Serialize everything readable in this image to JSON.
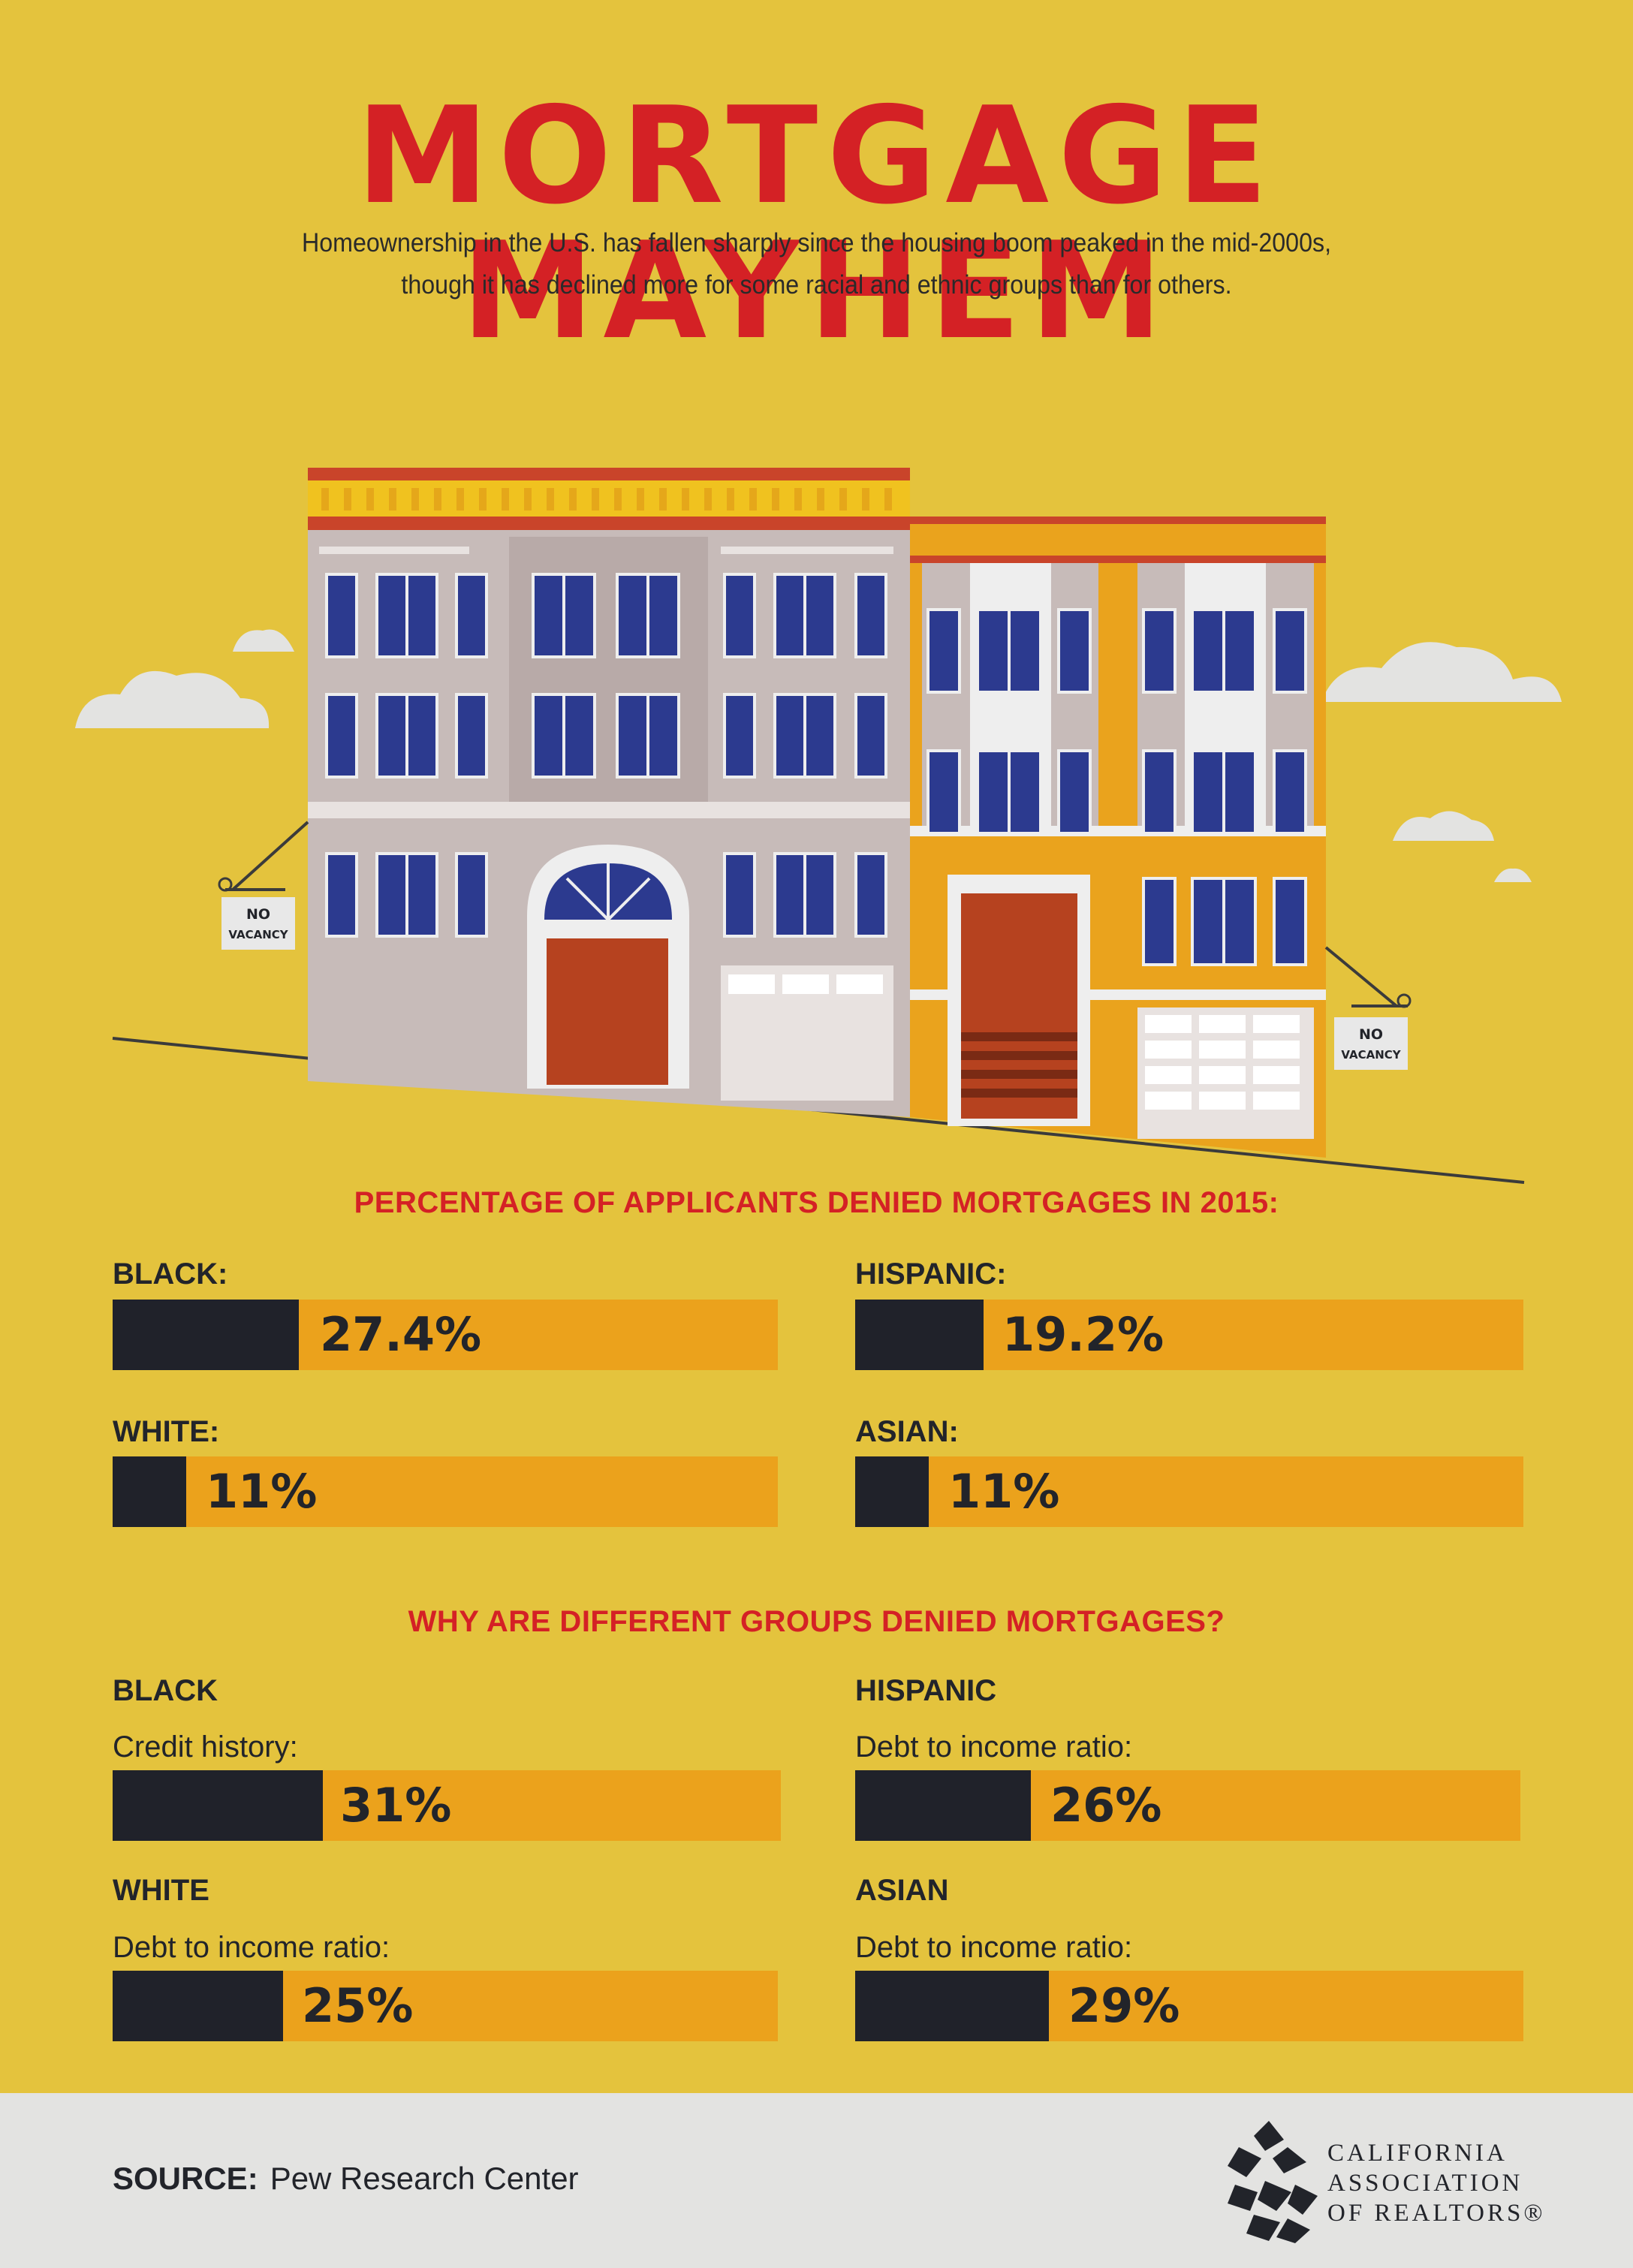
{
  "header": {
    "title": "MORTGAGE MAYHEM",
    "subtitle_line1": "Homeownership in the U.S. has fallen sharply since the housing boom peaked in the mid-2000s,",
    "subtitle_line2": "though it has declined more for some racial and ethnic groups than for others."
  },
  "illustration": {
    "sign_left": [
      "NO",
      "VACANCY"
    ],
    "sign_right": [
      "NO",
      "VACANCY"
    ]
  },
  "denial_section": {
    "title": "PERCENTAGE OF APPLICANTS DENIED MORTGAGES IN 2015:",
    "items": [
      {
        "label": "BLACK:",
        "value_text": "27.4%",
        "value": 27.4
      },
      {
        "label": "HISPANIC:",
        "value_text": "19.2%",
        "value": 19.2
      },
      {
        "label": "WHITE:",
        "value_text": "11%",
        "value": 11
      },
      {
        "label": "ASIAN:",
        "value_text": "11%",
        "value": 11
      }
    ]
  },
  "reasons_section": {
    "title": "WHY ARE DIFFERENT GROUPS DENIED MORTGAGES?",
    "items": [
      {
        "group": "BLACK",
        "reason": "Credit history:",
        "value_text": "31%",
        "value": 31
      },
      {
        "group": "HISPANIC",
        "reason": "Debt to income ratio:",
        "value_text": "26%",
        "value": 26
      },
      {
        "group": "WHITE",
        "reason": "Debt to income ratio:",
        "value_text": "25%",
        "value": 25
      },
      {
        "group": "ASIAN",
        "reason": "Debt to income ratio:",
        "value_text": "29%",
        "value": 29
      }
    ]
  },
  "footer": {
    "source_label": "SOURCE:",
    "source_value": "Pew Research Center",
    "logo_line1": "CALIFORNIA",
    "logo_line2": "ASSOCIATION",
    "logo_line3": "OF REALTORS®"
  },
  "colors": {
    "background": "#e4c33d",
    "title_red": "#d42125",
    "bar_track": "#eba21c",
    "bar_fill": "#20222a",
    "footer_bg": "#e3e3e1"
  }
}
